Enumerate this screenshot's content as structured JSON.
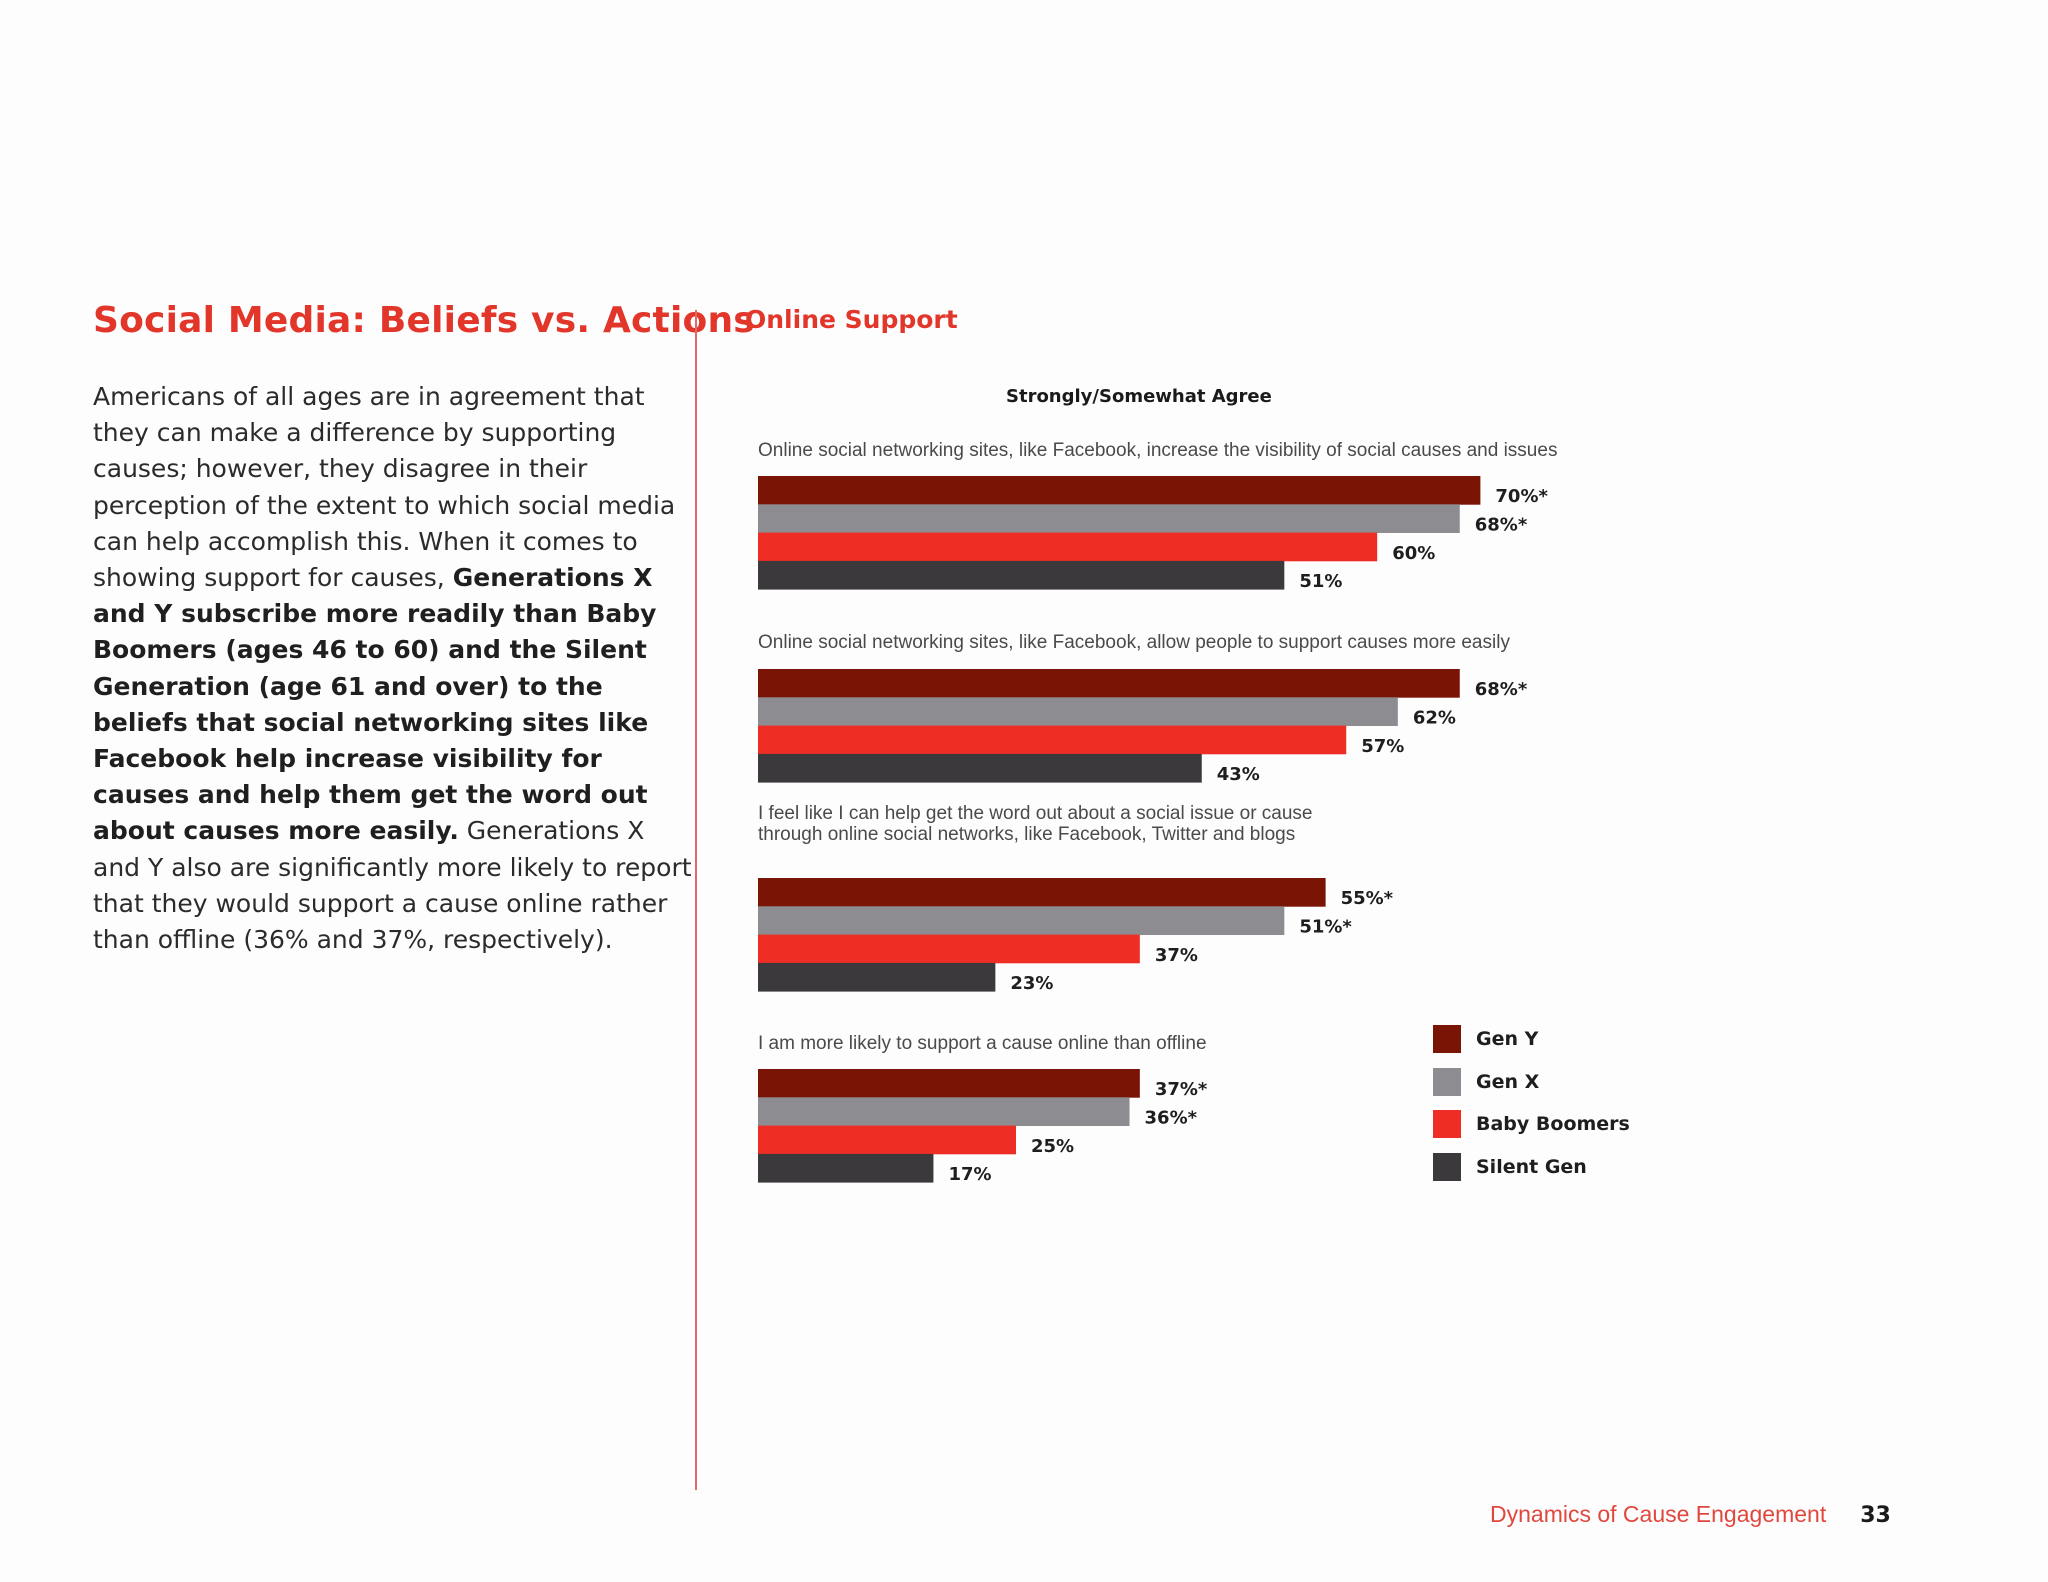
{
  "article": {
    "title": "Social Media: Beliefs vs. Actions",
    "paragraph": [
      {
        "text": "Americans of all ages are in agreement that they can make a difference by supporting causes; however, they disagree in their perception of the extent to which social media can help accomplish this. When it comes to showing support for causes, ",
        "bold": false
      },
      {
        "text": "Generations X and Y subscribe more readily than Baby Boomers (ages 46 to 60) and the Silent Generation (age 61 and over) to the beliefs that social networking sites like Facebook help increase visibility for causes and help them get the word out about causes more easily.",
        "bold": true
      },
      {
        "text": " Generations X and Y also are significantly more likely to report that they would support a cause online rather than offline (36% and 37%, respectively).",
        "bold": false
      }
    ]
  },
  "chart_data": {
    "type": "bar",
    "orientation": "horizontal",
    "title": "Online Support",
    "subtitle": "Strongly/Somewhat Agree",
    "unit": "%",
    "categories": [
      [
        "Online social networking sites, like Facebook, increase the visibility of social causes and issues"
      ],
      [
        "Online social networking sites, like Facebook, allow people to support causes more easily"
      ],
      [
        "I feel like I can help get the word out about a social issue or cause",
        "through online social networks, like Facebook, Twitter and blogs"
      ],
      [
        "I am more likely to support a cause online than offline"
      ]
    ],
    "series": [
      {
        "name": "Gen Y",
        "color": "#7a1505",
        "values": [
          70,
          68,
          55,
          37
        ],
        "labels": [
          "70%*",
          "68%*",
          "55%*",
          "37%*"
        ]
      },
      {
        "name": "Gen X",
        "color": "#8d8c90",
        "values": [
          68,
          62,
          51,
          36
        ],
        "labels": [
          "68%*",
          "62%",
          "51%*",
          "36%*"
        ]
      },
      {
        "name": "Baby Boomers",
        "color": "#ee2e24",
        "values": [
          60,
          57,
          37,
          25
        ],
        "labels": [
          "60%",
          "57%",
          "37%",
          "25%"
        ]
      },
      {
        "name": "Silent Gen",
        "color": "#3b393c",
        "values": [
          51,
          43,
          23,
          17
        ],
        "labels": [
          "51%",
          "43%",
          "23%",
          "17%"
        ]
      }
    ],
    "xlim": [
      0,
      100
    ],
    "legend_position": "bottom-right",
    "grid": false
  },
  "footer": {
    "title": "Dynamics of Cause Engagement",
    "page": "33"
  }
}
